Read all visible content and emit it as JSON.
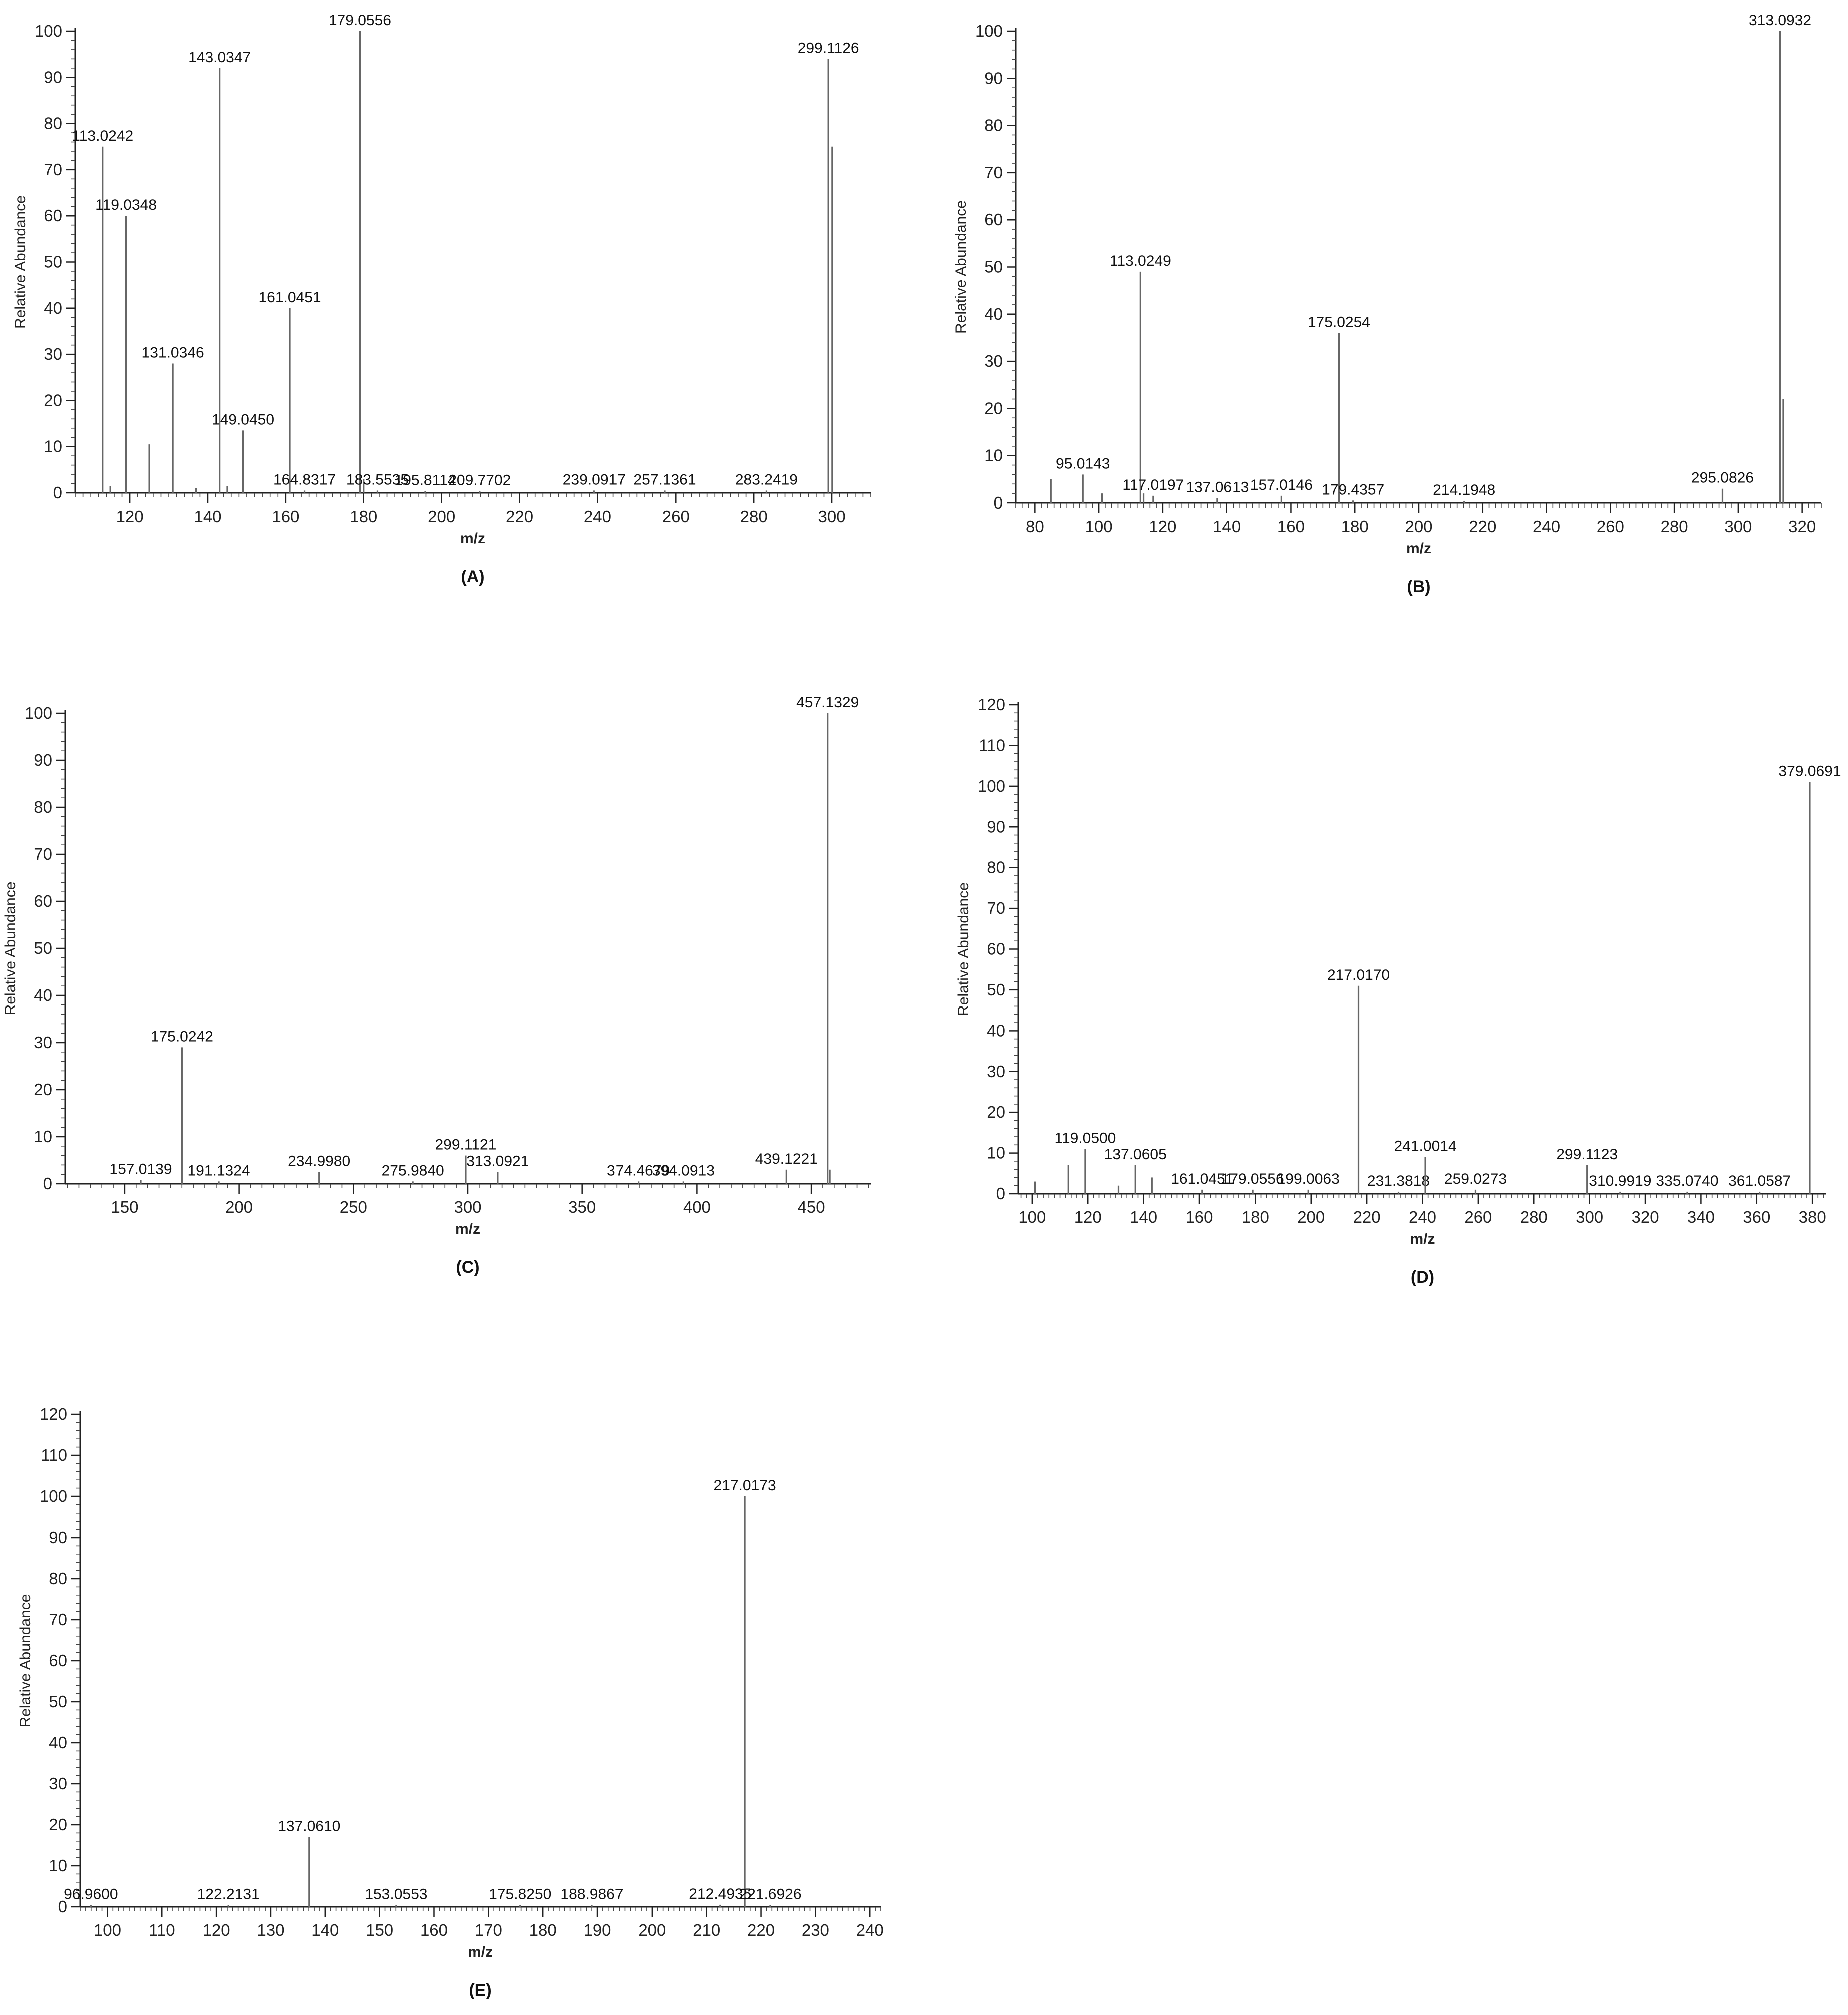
{
  "chart_data": [
    {
      "type": "bar",
      "panel": "(A)",
      "xlabel": "m/z",
      "ylabel": "Relative Abundance",
      "xlim": [
        106,
        310
      ],
      "ylim": [
        0,
        100
      ],
      "xticks": [
        120,
        140,
        160,
        180,
        200,
        220,
        240,
        260,
        280,
        300
      ],
      "yticks": [
        0,
        10,
        20,
        30,
        40,
        50,
        60,
        70,
        80,
        90,
        100
      ],
      "peaks": [
        {
          "x": 113.0242,
          "y": 75,
          "label": "113.0242"
        },
        {
          "x": 115.0,
          "y": 1.5
        },
        {
          "x": 119.0348,
          "y": 60,
          "label": "119.0348"
        },
        {
          "x": 125.0,
          "y": 10.5
        },
        {
          "x": 131.0346,
          "y": 28,
          "label": "131.0346"
        },
        {
          "x": 137.0,
          "y": 1
        },
        {
          "x": 143.0347,
          "y": 92,
          "label": "143.0347"
        },
        {
          "x": 145.0,
          "y": 1.5
        },
        {
          "x": 149.045,
          "y": 13.5,
          "label": "149.0450"
        },
        {
          "x": 161.0451,
          "y": 40,
          "label": "161.0451"
        },
        {
          "x": 164.8317,
          "y": 0.5,
          "label": "164.8317"
        },
        {
          "x": 179.0556,
          "y": 100,
          "label": "179.0556"
        },
        {
          "x": 180.0,
          "y": 3
        },
        {
          "x": 183.5535,
          "y": 0.5,
          "label": "183.5535"
        },
        {
          "x": 195.8114,
          "y": 0.4,
          "label": "195.8114"
        },
        {
          "x": 209.7702,
          "y": 0.4,
          "label": "209.7702"
        },
        {
          "x": 239.0917,
          "y": 0.5,
          "label": "239.0917"
        },
        {
          "x": 257.1361,
          "y": 0.5,
          "label": "257.1361"
        },
        {
          "x": 283.2419,
          "y": 0.5,
          "label": "283.2419"
        },
        {
          "x": 299.1126,
          "y": 94,
          "label": "299.1126"
        },
        {
          "x": 300.1,
          "y": 75
        }
      ]
    },
    {
      "type": "bar",
      "panel": "(B)",
      "xlabel": "m/z",
      "ylabel": "Relative Abundance",
      "xlim": [
        74,
        326
      ],
      "ylim": [
        0,
        100
      ],
      "xticks": [
        80,
        100,
        120,
        140,
        160,
        180,
        200,
        220,
        240,
        260,
        280,
        300,
        320
      ],
      "yticks": [
        0,
        10,
        20,
        30,
        40,
        50,
        60,
        70,
        80,
        90,
        100
      ],
      "peaks": [
        {
          "x": 85.0,
          "y": 5
        },
        {
          "x": 95.0143,
          "y": 6,
          "label": "95.0143"
        },
        {
          "x": 101.0,
          "y": 2
        },
        {
          "x": 113.0249,
          "y": 49,
          "label": "113.0249"
        },
        {
          "x": 114.0,
          "y": 2
        },
        {
          "x": 117.0197,
          "y": 1.5,
          "label": "117.0197"
        },
        {
          "x": 137.0613,
          "y": 1,
          "label": "137.0613"
        },
        {
          "x": 157.0146,
          "y": 1.5,
          "label": "157.0146"
        },
        {
          "x": 175.0254,
          "y": 36,
          "label": "175.0254"
        },
        {
          "x": 179.4357,
          "y": 0.5,
          "label": "179.4357"
        },
        {
          "x": 214.1948,
          "y": 0.4,
          "label": "214.1948"
        },
        {
          "x": 295.0826,
          "y": 3,
          "label": "295.0826"
        },
        {
          "x": 313.0932,
          "y": 100,
          "label": "313.0932"
        },
        {
          "x": 314.1,
          "y": 22
        }
      ]
    },
    {
      "type": "bar",
      "panel": "(C)",
      "xlabel": "m/z",
      "ylabel": "Relative Abundance",
      "xlim": [
        124,
        476
      ],
      "ylim": [
        0,
        100
      ],
      "xticks": [
        150,
        200,
        250,
        300,
        350,
        400,
        450
      ],
      "yticks": [
        0,
        10,
        20,
        30,
        40,
        50,
        60,
        70,
        80,
        90,
        100
      ],
      "peaks": [
        {
          "x": 157.0139,
          "y": 0.8,
          "label": "157.0139"
        },
        {
          "x": 175.0242,
          "y": 29,
          "label": "175.0242"
        },
        {
          "x": 191.1324,
          "y": 0.5,
          "label": "191.1324"
        },
        {
          "x": 234.998,
          "y": 2.5,
          "label": "234.9980"
        },
        {
          "x": 275.984,
          "y": 0.5,
          "label": "275.9840"
        },
        {
          "x": 299.1121,
          "y": 6,
          "label": "299.1121"
        },
        {
          "x": 313.0921,
          "y": 2.5,
          "label": "313.0921"
        },
        {
          "x": 374.4679,
          "y": 0.5,
          "label": "374.4679"
        },
        {
          "x": 394.0913,
          "y": 0.5,
          "label": "394.0913"
        },
        {
          "x": 439.1221,
          "y": 3,
          "label": "439.1221"
        },
        {
          "x": 457.1329,
          "y": 100,
          "label": "457.1329"
        },
        {
          "x": 458.1,
          "y": 3
        }
      ]
    },
    {
      "type": "bar",
      "panel": "(D)",
      "xlabel": "m/z",
      "ylabel": "Relative Abundance",
      "xlim": [
        95,
        385
      ],
      "ylim": [
        0,
        120
      ],
      "xticks": [
        100,
        120,
        140,
        160,
        180,
        200,
        220,
        240,
        260,
        280,
        300,
        320,
        340,
        360,
        380
      ],
      "yticks": [
        0,
        10,
        20,
        30,
        40,
        50,
        60,
        70,
        80,
        90,
        100,
        110,
        120
      ],
      "peaks": [
        {
          "x": 101.0,
          "y": 3
        },
        {
          "x": 113.0,
          "y": 7
        },
        {
          "x": 119.05,
          "y": 11,
          "label": "119.0500"
        },
        {
          "x": 131.0,
          "y": 2
        },
        {
          "x": 137.0605,
          "y": 7,
          "label": "137.0605"
        },
        {
          "x": 143.0,
          "y": 4
        },
        {
          "x": 161.0451,
          "y": 1,
          "label": "161.0451"
        },
        {
          "x": 179.0556,
          "y": 1,
          "label": "179.0556"
        },
        {
          "x": 199.0063,
          "y": 1,
          "label": "199.0063"
        },
        {
          "x": 217.017,
          "y": 51,
          "label": "217.0170"
        },
        {
          "x": 231.3818,
          "y": 0.5,
          "label": "231.3818"
        },
        {
          "x": 241.0014,
          "y": 9,
          "label": "241.0014"
        },
        {
          "x": 259.0273,
          "y": 1,
          "label": "259.0273"
        },
        {
          "x": 299.1123,
          "y": 7,
          "label": "299.1123"
        },
        {
          "x": 310.9919,
          "y": 0.5,
          "label": "310.9919"
        },
        {
          "x": 335.074,
          "y": 0.5,
          "label": "335.0740"
        },
        {
          "x": 361.0587,
          "y": 0.5,
          "label": "361.0587"
        },
        {
          "x": 379.0691,
          "y": 101,
          "label": "379.0691"
        }
      ]
    },
    {
      "type": "bar",
      "panel": "(E)",
      "xlabel": "m/z",
      "ylabel": "Relative Abundance",
      "xlim": [
        95,
        242
      ],
      "ylim": [
        0,
        120
      ],
      "xticks": [
        100,
        110,
        120,
        130,
        140,
        150,
        160,
        170,
        180,
        190,
        200,
        210,
        220,
        230,
        240
      ],
      "yticks": [
        0,
        10,
        20,
        30,
        40,
        50,
        60,
        70,
        80,
        90,
        100,
        110,
        120
      ],
      "peaks": [
        {
          "x": 96.96,
          "y": 0.4,
          "label": "96.9600"
        },
        {
          "x": 122.2131,
          "y": 0.4,
          "label": "122.2131"
        },
        {
          "x": 137.061,
          "y": 17,
          "label": "137.0610"
        },
        {
          "x": 153.0553,
          "y": 0.4,
          "label": "153.0553"
        },
        {
          "x": 175.825,
          "y": 0.4,
          "label": "175.8250"
        },
        {
          "x": 188.9867,
          "y": 0.4,
          "label": "188.9867"
        },
        {
          "x": 212.4935,
          "y": 0.5,
          "label": "212.4935"
        },
        {
          "x": 217.0173,
          "y": 100,
          "label": "217.0173"
        },
        {
          "x": 221.6926,
          "y": 0.4,
          "label": "221.6926"
        }
      ]
    }
  ]
}
